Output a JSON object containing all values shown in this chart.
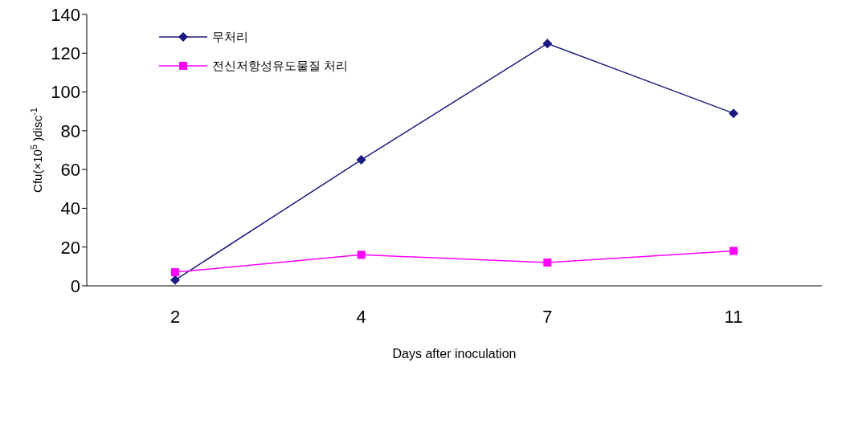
{
  "chart_data": {
    "type": "line",
    "xlabel": "Days after inoculation",
    "ylabel": "Cfu(×10$^{5}$)disc$^{-1}$",
    "categories": [
      "2",
      "4",
      "7",
      "11"
    ],
    "series": [
      {
        "name": "무처리",
        "color": "#1a1a80",
        "marker": "diamond",
        "values": [
          3,
          65,
          125,
          89
        ]
      },
      {
        "name": "전신저항성유도물질 처리",
        "color": "#ff00ff",
        "marker": "square",
        "values": [
          7,
          16,
          12,
          18
        ]
      }
    ],
    "ylim": [
      0,
      140
    ],
    "yticks": [
      0,
      20,
      40,
      60,
      80,
      100,
      120,
      140
    ],
    "grid": false,
    "legend": "top left",
    "line_style": "solid"
  }
}
